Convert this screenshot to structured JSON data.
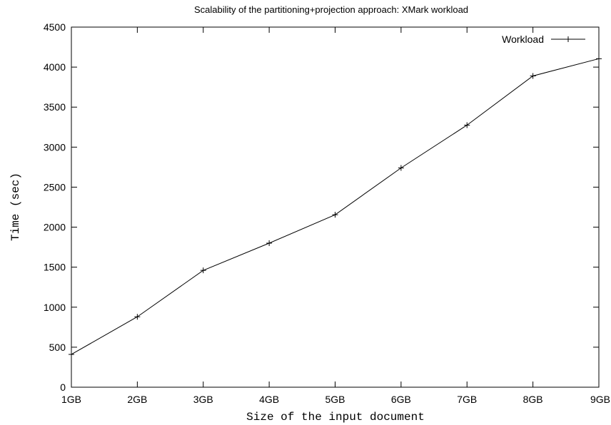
{
  "chart_data": {
    "type": "line",
    "title": "Scalability of the partitioning+projection approach: XMark workload",
    "xlabel": "Size of the input document",
    "ylabel": "Time (sec)",
    "categories": [
      "1GB",
      "2GB",
      "3GB",
      "4GB",
      "5GB",
      "6GB",
      "7GB",
      "8GB",
      "9GB"
    ],
    "series": [
      {
        "name": "Workload",
        "values": [
          410,
          880,
          1460,
          1800,
          2155,
          2740,
          3275,
          3890,
          4105
        ]
      }
    ],
    "ylim": [
      0,
      4500
    ],
    "yticks": [
      0,
      500,
      1000,
      1500,
      2000,
      2500,
      3000,
      3500,
      4000,
      4500
    ],
    "grid": false,
    "legend_position": "top-right",
    "line_color": "#000000"
  }
}
